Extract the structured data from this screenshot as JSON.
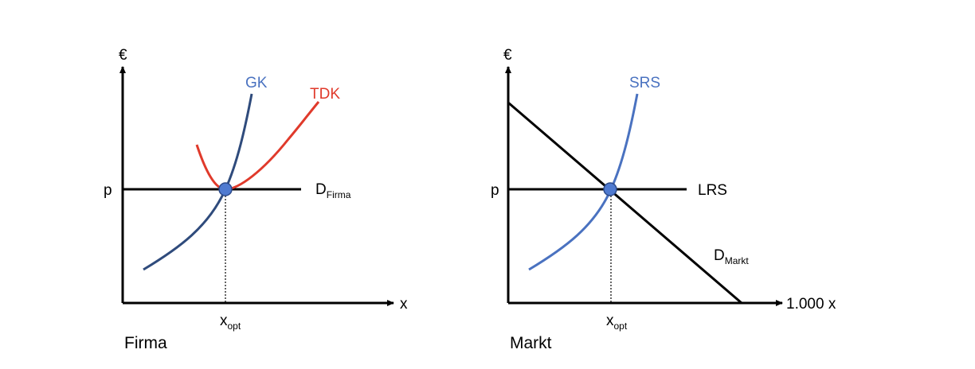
{
  "colors": {
    "axis": "#000000",
    "blue_dark": "#2f4b7c",
    "blue_light": "#4a72c0",
    "red": "#e03a2b",
    "point_fill": "#4f7ad0",
    "point_stroke": "#2c4a8a"
  },
  "left": {
    "panel_label": "Firma",
    "y_axis_label": "€",
    "x_axis_label": "x",
    "price_label": "p",
    "xopt_main": "x",
    "xopt_sub": "opt",
    "curves": {
      "marginal_cost": "GK",
      "avg_cost": "TDK",
      "demand_main": "D",
      "demand_sub": "Firma"
    }
  },
  "right": {
    "panel_label": "Markt",
    "y_axis_label": "€",
    "x_axis_label": "1.000 x",
    "price_label": "p",
    "xopt_main": "x",
    "xopt_sub": "opt",
    "curves": {
      "short_run_supply": "SRS",
      "long_run_supply": "LRS",
      "demand_main": "D",
      "demand_sub": "Markt"
    }
  }
}
